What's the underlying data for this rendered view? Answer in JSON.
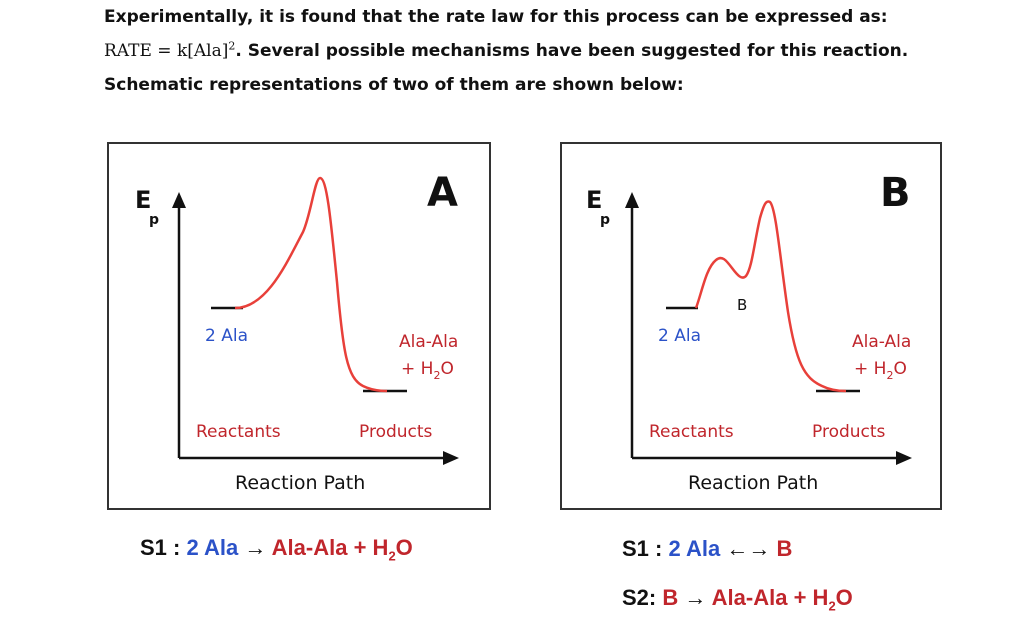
{
  "intro": {
    "part1": "Experimentally, it is found that the rate law for this process can be expressed as: ",
    "rate_math": "RATE = k[Ala]",
    "rate_exp": "2",
    "part2": ". Several possible mechanisms have been suggested for this reaction. Schematic representations of two of them are shown below:"
  },
  "diagram_a": {
    "letter": "A",
    "y_axis_label": "E",
    "y_axis_sub": "p",
    "reactant_species": "2 Ala",
    "product_species_line1": "Ala-Ala",
    "product_species_line2_plus": "+ H",
    "product_species_line2_sub": "2",
    "product_species_line2_end": "O",
    "reactants_label": "Reactants",
    "products_label": "Products",
    "x_axis_label": "Reaction Path"
  },
  "diagram_b": {
    "letter": "B",
    "y_axis_label": "E",
    "y_axis_sub": "p",
    "intermediate_label": "B",
    "reactant_species": "2 Ala",
    "product_species_line1": "Ala-Ala",
    "product_species_line2_plus": "+ H",
    "product_species_line2_sub": "2",
    "product_species_line2_end": "O",
    "reactants_label": "Reactants",
    "products_label": "Products",
    "x_axis_label": "Reaction Path"
  },
  "mechanism_a": {
    "s1_label": "S1 : ",
    "s1_reactant": "2 Ala",
    "s1_arrow": " → ",
    "s1_product": "Ala-Ala",
    "s1_plus": " + H",
    "s1_sub": "2",
    "s1_end": "O"
  },
  "mechanism_b": {
    "s1_label": "S1 : ",
    "s1_reactant": "2 Ala",
    "s1_arrow": " ←→ ",
    "s1_product": "B",
    "s2_label": "S2: ",
    "s2_reactant": "B",
    "s2_arrow": " → ",
    "s2_product": "Ala-Ala",
    "s2_plus": " + H",
    "s2_sub": "2",
    "s2_end": "O"
  },
  "colors": {
    "curve": "#e8403a",
    "reactant_text": "#2b52c8",
    "product_text": "#c0262c",
    "frame": "#333333"
  }
}
